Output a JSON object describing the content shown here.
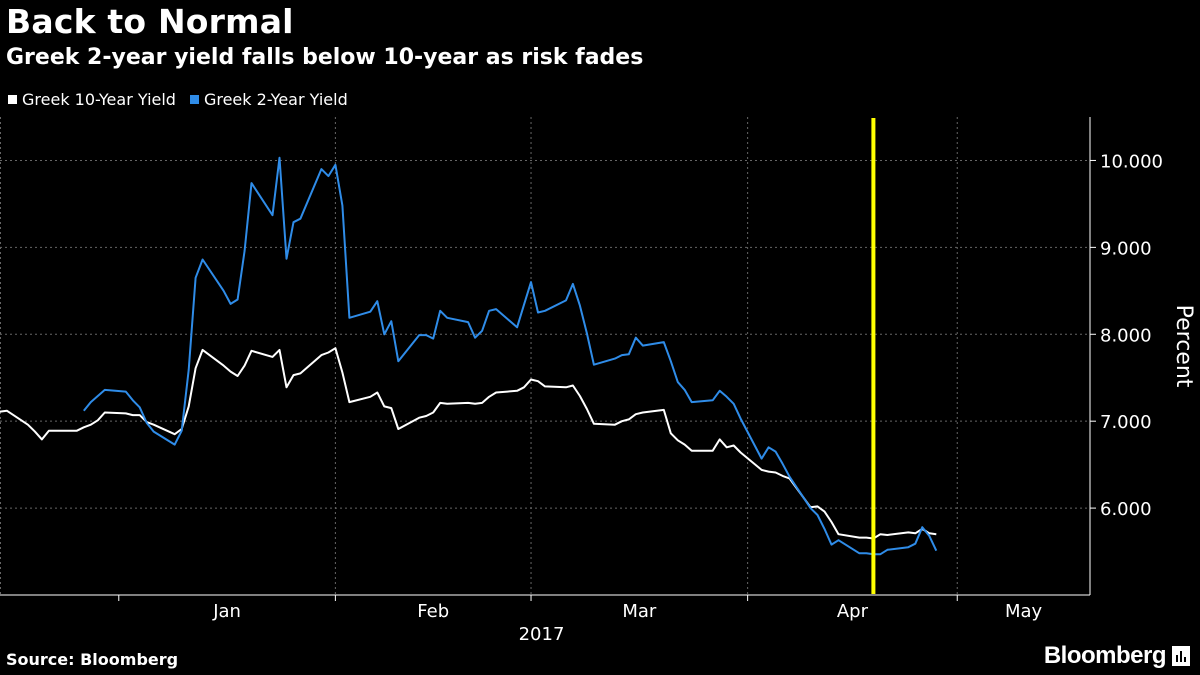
{
  "title": "Back to Normal",
  "subtitle": "Greek 2-year yield falls below 10-year as risk fades",
  "source": "Source: Bloomberg",
  "brand": "Bloomberg",
  "colors": {
    "background": "#000000",
    "ten_year": "#ffffff",
    "two_year": "#2f8ce8",
    "marker": "#ffff00",
    "grid": "#666666"
  },
  "chart_data": {
    "type": "line",
    "title": "Back to Normal",
    "subtitle": "Greek 2-year yield falls below 10-year as risk fades",
    "xlabel": "2017",
    "ylabel": "Percent",
    "x_ticks": [
      "Jan",
      "Feb",
      "Mar",
      "Apr",
      "May"
    ],
    "x_tick_dates": [
      "2017-01-01",
      "2017-02-01",
      "2017-03-01",
      "2017-04-01",
      "2017-05-01"
    ],
    "x_range": [
      "2016-12-15",
      "2017-05-20"
    ],
    "y_ticks": [
      "6.000",
      "7.000",
      "8.000",
      "9.000",
      "10.000"
    ],
    "ylim": [
      5.0,
      10.5
    ],
    "grid": true,
    "legend_position": "top-left",
    "marker_date": "2017-04-19",
    "series": [
      {
        "name": "Greek 10-Year Yield",
        "color": "#ffffff",
        "points": [
          [
            "2016-12-15",
            7.11
          ],
          [
            "2016-12-16",
            7.12
          ],
          [
            "2016-12-19",
            6.96
          ],
          [
            "2016-12-20",
            6.88
          ],
          [
            "2016-12-21",
            6.79
          ],
          [
            "2016-12-22",
            6.89
          ],
          [
            "2016-12-23",
            6.89
          ],
          [
            "2016-12-26",
            6.89
          ],
          [
            "2016-12-27",
            6.93
          ],
          [
            "2016-12-28",
            6.96
          ],
          [
            "2016-12-29",
            7.01
          ],
          [
            "2016-12-30",
            7.1
          ],
          [
            "2017-01-02",
            7.09
          ],
          [
            "2017-01-03",
            7.07
          ],
          [
            "2017-01-04",
            7.07
          ],
          [
            "2017-01-05",
            6.99
          ],
          [
            "2017-01-06",
            6.96
          ],
          [
            "2017-01-09",
            6.85
          ],
          [
            "2017-01-10",
            6.91
          ],
          [
            "2017-01-11",
            7.17
          ],
          [
            "2017-01-12",
            7.61
          ],
          [
            "2017-01-13",
            7.82
          ],
          [
            "2017-01-16",
            7.64
          ],
          [
            "2017-01-17",
            7.57
          ],
          [
            "2017-01-18",
            7.52
          ],
          [
            "2017-01-19",
            7.64
          ],
          [
            "2017-01-20",
            7.81
          ],
          [
            "2017-01-23",
            7.74
          ],
          [
            "2017-01-24",
            7.82
          ],
          [
            "2017-01-25",
            7.39
          ],
          [
            "2017-01-26",
            7.53
          ],
          [
            "2017-01-27",
            7.55
          ],
          [
            "2017-01-30",
            7.76
          ],
          [
            "2017-01-31",
            7.79
          ],
          [
            "2017-02-01",
            7.84
          ],
          [
            "2017-02-02",
            7.56
          ],
          [
            "2017-02-03",
            7.22
          ],
          [
            "2017-02-06",
            7.28
          ],
          [
            "2017-02-07",
            7.33
          ],
          [
            "2017-02-08",
            7.17
          ],
          [
            "2017-02-09",
            7.15
          ],
          [
            "2017-02-10",
            6.91
          ],
          [
            "2017-02-13",
            7.04
          ],
          [
            "2017-02-14",
            7.06
          ],
          [
            "2017-02-15",
            7.1
          ],
          [
            "2017-02-16",
            7.21
          ],
          [
            "2017-02-17",
            7.2
          ],
          [
            "2017-02-20",
            7.21
          ],
          [
            "2017-02-21",
            7.2
          ],
          [
            "2017-02-22",
            7.21
          ],
          [
            "2017-02-23",
            7.28
          ],
          [
            "2017-02-24",
            7.33
          ],
          [
            "2017-02-27",
            7.35
          ],
          [
            "2017-02-28",
            7.39
          ],
          [
            "2017-03-01",
            7.48
          ],
          [
            "2017-03-02",
            7.46
          ],
          [
            "2017-03-03",
            7.4
          ],
          [
            "2017-03-06",
            7.39
          ],
          [
            "2017-03-07",
            7.41
          ],
          [
            "2017-03-08",
            7.29
          ],
          [
            "2017-03-09",
            7.14
          ],
          [
            "2017-03-10",
            6.97
          ],
          [
            "2017-03-13",
            6.96
          ],
          [
            "2017-03-14",
            7.0
          ],
          [
            "2017-03-15",
            7.02
          ],
          [
            "2017-03-16",
            7.08
          ],
          [
            "2017-03-17",
            7.1
          ],
          [
            "2017-03-20",
            7.13
          ],
          [
            "2017-03-21",
            6.86
          ],
          [
            "2017-03-22",
            6.78
          ],
          [
            "2017-03-23",
            6.73
          ],
          [
            "2017-03-24",
            6.66
          ],
          [
            "2017-03-27",
            6.66
          ],
          [
            "2017-03-28",
            6.79
          ],
          [
            "2017-03-29",
            6.7
          ],
          [
            "2017-03-30",
            6.72
          ],
          [
            "2017-03-31",
            6.64
          ],
          [
            "2017-04-03",
            6.44
          ],
          [
            "2017-04-04",
            6.42
          ],
          [
            "2017-04-05",
            6.41
          ],
          [
            "2017-04-06",
            6.37
          ],
          [
            "2017-04-07",
            6.34
          ],
          [
            "2017-04-10",
            6.01
          ],
          [
            "2017-04-11",
            6.02
          ],
          [
            "2017-04-12",
            5.96
          ],
          [
            "2017-04-13",
            5.84
          ],
          [
            "2017-04-14",
            5.7
          ],
          [
            "2017-04-17",
            5.66
          ],
          [
            "2017-04-18",
            5.66
          ],
          [
            "2017-04-19",
            5.65
          ],
          [
            "2017-04-20",
            5.7
          ],
          [
            "2017-04-21",
            5.69
          ],
          [
            "2017-04-24",
            5.72
          ],
          [
            "2017-04-25",
            5.71
          ],
          [
            "2017-04-26",
            5.76
          ],
          [
            "2017-04-27",
            5.71
          ],
          [
            "2017-04-28",
            5.7
          ]
        ]
      },
      {
        "name": "Greek 2-Year Yield",
        "color": "#2f8ce8",
        "points": [
          [
            "2016-12-27",
            7.12
          ],
          [
            "2016-12-28",
            7.22
          ],
          [
            "2016-12-29",
            7.29
          ],
          [
            "2016-12-30",
            7.36
          ],
          [
            "2017-01-02",
            7.34
          ],
          [
            "2017-01-03",
            7.24
          ],
          [
            "2017-01-04",
            7.16
          ],
          [
            "2017-01-05",
            6.98
          ],
          [
            "2017-01-06",
            6.88
          ],
          [
            "2017-01-09",
            6.73
          ],
          [
            "2017-01-10",
            6.89
          ],
          [
            "2017-01-11",
            7.59
          ],
          [
            "2017-01-12",
            8.65
          ],
          [
            "2017-01-13",
            8.86
          ],
          [
            "2017-01-16",
            8.5
          ],
          [
            "2017-01-17",
            8.35
          ],
          [
            "2017-01-18",
            8.4
          ],
          [
            "2017-01-19",
            8.96
          ],
          [
            "2017-01-20",
            9.74
          ],
          [
            "2017-01-23",
            9.37
          ],
          [
            "2017-01-24",
            10.03
          ],
          [
            "2017-01-25",
            8.87
          ],
          [
            "2017-01-26",
            9.29
          ],
          [
            "2017-01-27",
            9.33
          ],
          [
            "2017-01-30",
            9.9
          ],
          [
            "2017-01-31",
            9.82
          ],
          [
            "2017-02-01",
            9.95
          ],
          [
            "2017-02-02",
            9.48
          ],
          [
            "2017-02-03",
            8.19
          ],
          [
            "2017-02-06",
            8.26
          ],
          [
            "2017-02-07",
            8.38
          ],
          [
            "2017-02-08",
            8.0
          ],
          [
            "2017-02-09",
            8.15
          ],
          [
            "2017-02-10",
            7.69
          ],
          [
            "2017-02-13",
            7.99
          ],
          [
            "2017-02-14",
            7.99
          ],
          [
            "2017-02-15",
            7.95
          ],
          [
            "2017-02-16",
            8.27
          ],
          [
            "2017-02-17",
            8.19
          ],
          [
            "2017-02-20",
            8.14
          ],
          [
            "2017-02-21",
            7.96
          ],
          [
            "2017-02-22",
            8.04
          ],
          [
            "2017-02-23",
            8.27
          ],
          [
            "2017-02-24",
            8.29
          ],
          [
            "2017-02-27",
            8.08
          ],
          [
            "2017-02-28",
            8.34
          ],
          [
            "2017-03-01",
            8.6
          ],
          [
            "2017-03-02",
            8.25
          ],
          [
            "2017-03-03",
            8.27
          ],
          [
            "2017-03-06",
            8.39
          ],
          [
            "2017-03-07",
            8.58
          ],
          [
            "2017-03-08",
            8.33
          ],
          [
            "2017-03-09",
            8.01
          ],
          [
            "2017-03-10",
            7.65
          ],
          [
            "2017-03-13",
            7.72
          ],
          [
            "2017-03-14",
            7.76
          ],
          [
            "2017-03-15",
            7.77
          ],
          [
            "2017-03-16",
            7.96
          ],
          [
            "2017-03-17",
            7.87
          ],
          [
            "2017-03-20",
            7.91
          ],
          [
            "2017-03-21",
            7.69
          ],
          [
            "2017-03-22",
            7.45
          ],
          [
            "2017-03-23",
            7.36
          ],
          [
            "2017-03-24",
            7.22
          ],
          [
            "2017-03-27",
            7.24
          ],
          [
            "2017-03-28",
            7.35
          ],
          [
            "2017-03-29",
            7.28
          ],
          [
            "2017-03-30",
            7.2
          ],
          [
            "2017-03-31",
            7.03
          ],
          [
            "2017-04-03",
            6.57
          ],
          [
            "2017-04-04",
            6.7
          ],
          [
            "2017-04-05",
            6.65
          ],
          [
            "2017-04-06",
            6.51
          ],
          [
            "2017-04-07",
            6.36
          ],
          [
            "2017-04-10",
            6.0
          ],
          [
            "2017-04-11",
            5.92
          ],
          [
            "2017-04-12",
            5.76
          ],
          [
            "2017-04-13",
            5.58
          ],
          [
            "2017-04-14",
            5.63
          ],
          [
            "2017-04-17",
            5.48
          ],
          [
            "2017-04-18",
            5.48
          ],
          [
            "2017-04-19",
            5.47
          ],
          [
            "2017-04-20",
            5.47
          ],
          [
            "2017-04-21",
            5.52
          ],
          [
            "2017-04-24",
            5.55
          ],
          [
            "2017-04-25",
            5.59
          ],
          [
            "2017-04-26",
            5.78
          ],
          [
            "2017-04-27",
            5.68
          ],
          [
            "2017-04-28",
            5.51
          ]
        ]
      }
    ]
  }
}
